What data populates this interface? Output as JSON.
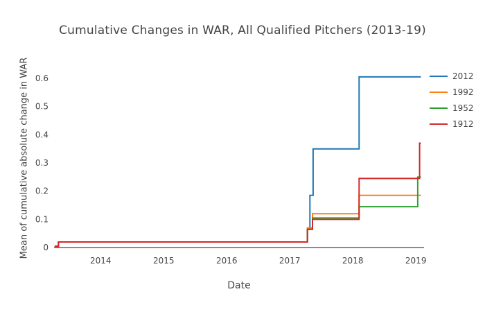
{
  "chart_data": {
    "type": "line",
    "title": "Cumulative Changes in WAR, All Qualified Pitchers (2013-19)",
    "xlabel": "Date",
    "ylabel": "Mean of cumulative absolute change in WAR",
    "xlim": [
      2013.26,
      2019.13
    ],
    "ylim": [
      -0.012,
      0.644
    ],
    "xticks": [
      2014,
      2015,
      2016,
      2017,
      2018,
      2019
    ],
    "yticks": [
      0,
      0.1,
      0.2,
      0.3,
      0.4,
      0.5,
      0.6
    ],
    "grid": false,
    "legend_position": "top-right",
    "axis_color": "#444444",
    "zeroline_color": "#444444",
    "series": [
      {
        "name": "2012",
        "color": "#1f77b4",
        "x": [
          2013.27,
          2013.33,
          2013.33,
          2017.28,
          2017.28,
          2017.32,
          2017.32,
          2017.37,
          2017.37,
          2018.1,
          2018.1,
          2019.08
        ],
        "y": [
          0.005,
          0.005,
          0.02,
          0.02,
          0.065,
          0.065,
          0.185,
          0.185,
          0.35,
          0.35,
          0.605,
          0.605
        ]
      },
      {
        "name": "1992",
        "color": "#ff7f0e",
        "x": [
          2013.27,
          2013.33,
          2013.33,
          2017.28,
          2017.28,
          2017.36,
          2017.36,
          2018.1,
          2018.1,
          2019.08
        ],
        "y": [
          0.005,
          0.005,
          0.02,
          0.02,
          0.07,
          0.07,
          0.12,
          0.12,
          0.185,
          0.185
        ]
      },
      {
        "name": "1952",
        "color": "#2ca02c",
        "x": [
          2013.27,
          2013.33,
          2013.33,
          2017.28,
          2017.28,
          2017.36,
          2017.36,
          2018.1,
          2018.1,
          2019.03,
          2019.03,
          2019.08
        ],
        "y": [
          0.005,
          0.005,
          0.02,
          0.02,
          0.065,
          0.065,
          0.105,
          0.105,
          0.145,
          0.145,
          0.25,
          0.25
        ]
      },
      {
        "name": "1912",
        "color": "#d62728",
        "x": [
          2013.27,
          2013.33,
          2013.33,
          2017.28,
          2017.28,
          2017.36,
          2017.36,
          2018.1,
          2018.1,
          2019.06,
          2019.06,
          2019.08
        ],
        "y": [
          0.005,
          0.005,
          0.02,
          0.02,
          0.065,
          0.065,
          0.1,
          0.1,
          0.245,
          0.245,
          0.37,
          0.37
        ]
      }
    ]
  }
}
